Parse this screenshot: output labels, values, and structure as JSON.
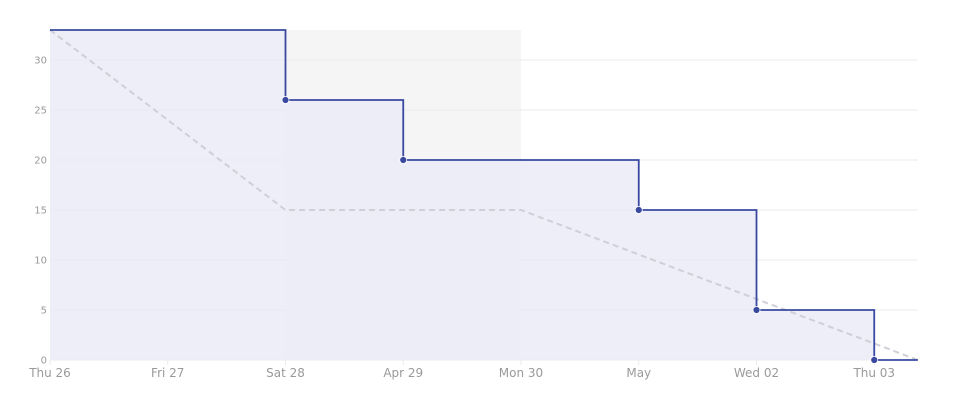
{
  "chart_data": {
    "type": "line",
    "x_ticks": [
      "Thu 26",
      "Fri 27",
      "Sat 28",
      "Apr 29",
      "Mon 30",
      "May",
      "Wed 02",
      "Thu 03"
    ],
    "y_ticks": [
      "0",
      "5",
      "10",
      "15",
      "20",
      "25",
      "30"
    ],
    "ylim": [
      0,
      33
    ],
    "grid": true,
    "non_working_period": {
      "from": "Sat 28",
      "to": "Mon 30"
    },
    "series": [
      {
        "style": "step",
        "color": "#3949a0",
        "x": [
          0,
          2,
          3,
          5,
          6,
          7,
          7.37
        ],
        "y": [
          33,
          26,
          20,
          15,
          5,
          0,
          0
        ],
        "marker_points": [
          {
            "x": 2,
            "y": 26
          },
          {
            "x": 3,
            "y": 20
          },
          {
            "x": 5,
            "y": 15
          },
          {
            "x": 6,
            "y": 5
          },
          {
            "x": 7,
            "y": 0
          }
        ]
      },
      {
        "style": "dashed",
        "color": "#cfcfd8",
        "x": [
          0,
          2,
          4,
          7.37
        ],
        "y": [
          33,
          15,
          15,
          0
        ]
      }
    ]
  },
  "colors": {
    "actual_line": "#3949a0",
    "actual_fill": "#ebebf7",
    "ideal_line": "#cfcfd8",
    "weekend_shade": "#f5f5f5",
    "grid": "#ebebeb",
    "tick_text": "#9a9a9a"
  }
}
